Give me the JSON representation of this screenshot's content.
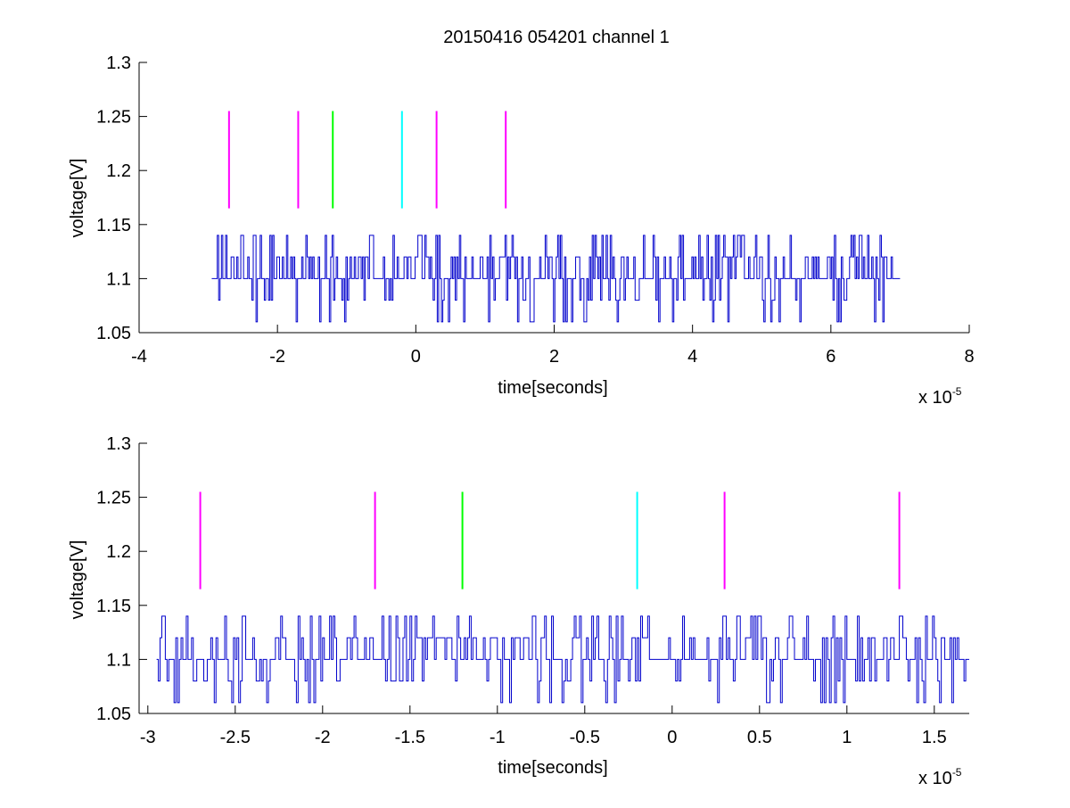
{
  "figure": {
    "title": "20150416 054201 channel 1",
    "background": "#ffffff"
  },
  "chart_data": [
    {
      "type": "line",
      "title": "20150416 054201 channel 1",
      "xlabel": "time[seconds]",
      "ylabel": "voltage[V]",
      "x_multiplier_label": "x 10",
      "x_multiplier_exponent": "-5",
      "xlim": [
        -4e-05,
        8e-05
      ],
      "ylim": [
        1.05,
        1.3
      ],
      "xticks": [
        -4e-05,
        -2e-05,
        0,
        2e-05,
        4e-05,
        6e-05,
        8e-05
      ],
      "xtick_labels": [
        "-4",
        "-2",
        "0",
        "2",
        "4",
        "6",
        "8"
      ],
      "yticks": [
        1.05,
        1.1,
        1.15,
        1.2,
        1.25,
        1.3
      ],
      "ytick_labels": [
        "1.05",
        "1.1",
        "1.15",
        "1.2",
        "1.25",
        "1.3"
      ],
      "grid": false,
      "series": [
        {
          "style": "signal",
          "color": "#0000cc",
          "x_start": -2.95e-05,
          "x_end": 7e-05,
          "levels": [
            1.06,
            1.08,
            1.1,
            1.12,
            1.14
          ],
          "baseline": 1.1,
          "sample_interval": 2e-07,
          "seed": 11
        }
      ],
      "markers": [
        {
          "x": -2.7e-05,
          "y_range": [
            1.165,
            1.255
          ],
          "color": "#ff00ff"
        },
        {
          "x": -1.7e-05,
          "y_range": [
            1.165,
            1.255
          ],
          "color": "#ff00ff"
        },
        {
          "x": -1.2e-05,
          "y_range": [
            1.165,
            1.255
          ],
          "color": "#00ff00"
        },
        {
          "x": -2e-06,
          "y_range": [
            1.165,
            1.255
          ],
          "color": "#00ffff"
        },
        {
          "x": 3e-06,
          "y_range": [
            1.165,
            1.255
          ],
          "color": "#ff00ff"
        },
        {
          "x": 1.3e-05,
          "y_range": [
            1.165,
            1.255
          ],
          "color": "#ff00ff"
        }
      ]
    },
    {
      "type": "line",
      "title": "",
      "xlabel": "time[seconds]",
      "ylabel": "voltage[V]",
      "x_multiplier_label": "x 10",
      "x_multiplier_exponent": "-5",
      "xlim": [
        -3.05e-05,
        1.7e-05
      ],
      "ylim": [
        1.05,
        1.3
      ],
      "xticks": [
        -3e-05,
        -2.5e-05,
        -2e-05,
        -1.5e-05,
        -1e-05,
        -5e-06,
        0,
        5e-06,
        1e-05,
        1.5e-05
      ],
      "xtick_labels": [
        "-3",
        "-2.5",
        "-2",
        "-1.5",
        "-1",
        "-0.5",
        "0",
        "0.5",
        "1",
        "1.5"
      ],
      "yticks": [
        1.05,
        1.1,
        1.15,
        1.2,
        1.25,
        1.3
      ],
      "ytick_labels": [
        "1.05",
        "1.1",
        "1.15",
        "1.2",
        "1.25",
        "1.3"
      ],
      "grid": false,
      "series": [
        {
          "style": "signal",
          "color": "#0000cc",
          "x_start": -2.95e-05,
          "x_end": 1.7e-05,
          "levels": [
            1.06,
            1.08,
            1.1,
            1.12,
            1.14
          ],
          "baseline": 1.1,
          "sample_interval": 1e-07,
          "seed": 29
        }
      ],
      "markers": [
        {
          "x": -2.7e-05,
          "y_range": [
            1.165,
            1.255
          ],
          "color": "#ff00ff"
        },
        {
          "x": -1.7e-05,
          "y_range": [
            1.165,
            1.255
          ],
          "color": "#ff00ff"
        },
        {
          "x": -1.2e-05,
          "y_range": [
            1.165,
            1.255
          ],
          "color": "#00ff00"
        },
        {
          "x": -2e-06,
          "y_range": [
            1.165,
            1.255
          ],
          "color": "#00ffff"
        },
        {
          "x": 3e-06,
          "y_range": [
            1.165,
            1.255
          ],
          "color": "#ff00ff"
        },
        {
          "x": 1.3e-05,
          "y_range": [
            1.165,
            1.255
          ],
          "color": "#ff00ff"
        }
      ]
    }
  ]
}
